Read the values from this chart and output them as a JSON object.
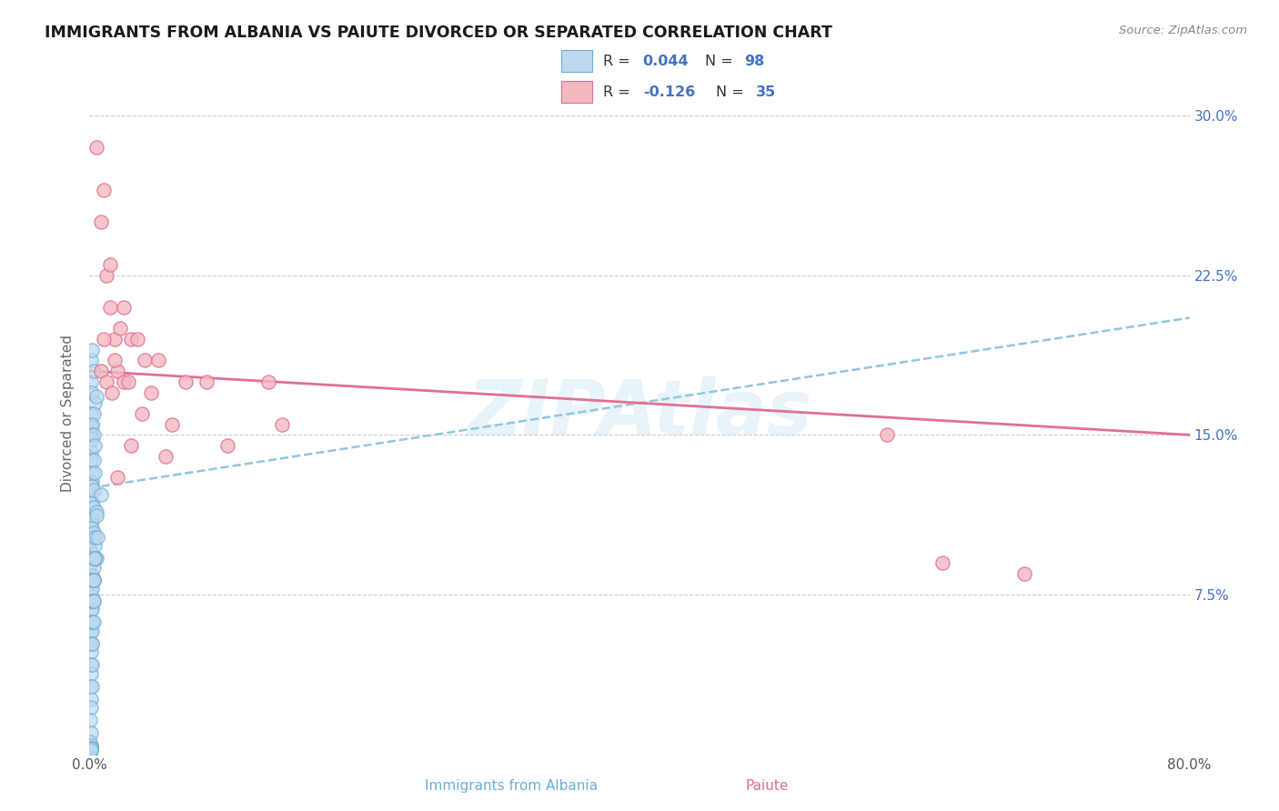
{
  "title": "IMMIGRANTS FROM ALBANIA VS PAIUTE DIVORCED OR SEPARATED CORRELATION CHART",
  "source": "Source: ZipAtlas.com",
  "ylabel_label": "Divorced or Separated",
  "xlabel_label_left": "Immigrants from Albania",
  "xlabel_label_right": "Paiute",
  "blue_color": "#6baed6",
  "blue_light": "#bdd7ee",
  "pink_color": "#f4b8c1",
  "pink_dark": "#e07090",
  "trendline_blue_color": "#93c6e0",
  "trendline_pink_color": "#e07090",
  "watermark": "ZIPAtlas",
  "xlim": [
    0.0,
    0.8
  ],
  "ylim": [
    0.0,
    0.32
  ],
  "y_tick_positions": [
    0.075,
    0.15,
    0.225,
    0.3
  ],
  "y_tick_labels": [
    "7.5%",
    "15.0%",
    "22.5%",
    "30.0%"
  ],
  "x_tick_positions": [
    0.0,
    0.1,
    0.2,
    0.3,
    0.4,
    0.5,
    0.6,
    0.7,
    0.8
  ],
  "x_tick_labels": [
    "0.0%",
    "",
    "",
    "",
    "",
    "",
    "",
    "",
    "80.0%"
  ],
  "blue_trendline_x0": 0.0,
  "blue_trendline_y0": 0.125,
  "blue_trendline_x1": 0.8,
  "blue_trendline_y1": 0.205,
  "pink_trendline_x0": 0.0,
  "pink_trendline_y0": 0.18,
  "pink_trendline_x1": 0.8,
  "pink_trendline_y1": 0.15,
  "legend_r1": "0.044",
  "legend_n1": "98",
  "legend_r2": "-0.126",
  "legend_n2": "35",
  "blue_x": [
    0.001,
    0.002,
    0.001,
    0.003,
    0.002,
    0.004,
    0.001,
    0.0005,
    0.002,
    0.001,
    0.003,
    0.002,
    0.001,
    0.005,
    0.001,
    0.002,
    0.001,
    0.003,
    0.001,
    0.002,
    0.001,
    0.001,
    0.004,
    0.002,
    0.0005,
    0.003,
    0.001,
    0.002,
    0.001,
    0.0005,
    0.002,
    0.001,
    0.003,
    0.001,
    0.002,
    0.001,
    0.004,
    0.002,
    0.001,
    0.003,
    0.001,
    0.002,
    0.001,
    0.005,
    0.001,
    0.002,
    0.001,
    0.003,
    0.001,
    0.002,
    0.001,
    0.001,
    0.004,
    0.002,
    0.001,
    0.003,
    0.001,
    0.002,
    0.001,
    0.0005,
    0.002,
    0.001,
    0.003,
    0.0005,
    0.002,
    0.001,
    0.004,
    0.002,
    0.001,
    0.003,
    0.001,
    0.002,
    0.001,
    0.005,
    0.002,
    0.003,
    0.001,
    0.002,
    0.004,
    0.003,
    0.006,
    0.002,
    0.003,
    0.001,
    0.002,
    0.008,
    0.003,
    0.004,
    0.002,
    0.001,
    0.005,
    0.003,
    0.002,
    0.001,
    0.004,
    0.002,
    0.001,
    0.003
  ],
  "blue_y": [
    0.185,
    0.19,
    0.175,
    0.18,
    0.17,
    0.165,
    0.16,
    0.155,
    0.155,
    0.15,
    0.16,
    0.155,
    0.15,
    0.168,
    0.142,
    0.148,
    0.138,
    0.15,
    0.128,
    0.132,
    0.122,
    0.118,
    0.145,
    0.128,
    0.112,
    0.138,
    0.108,
    0.118,
    0.102,
    0.096,
    0.126,
    0.09,
    0.116,
    0.084,
    0.11,
    0.078,
    0.132,
    0.106,
    0.072,
    0.124,
    0.068,
    0.094,
    0.062,
    0.114,
    0.058,
    0.084,
    0.052,
    0.104,
    0.048,
    0.074,
    0.042,
    0.038,
    0.098,
    0.068,
    0.032,
    0.088,
    0.026,
    0.058,
    0.022,
    0.016,
    0.078,
    0.01,
    0.092,
    0.006,
    0.082,
    0.004,
    0.102,
    0.072,
    0.002,
    0.082,
    0.003,
    0.062,
    0.003,
    0.092,
    0.072,
    0.082,
    0.003,
    0.062,
    0.092,
    0.072,
    0.102,
    0.052,
    0.082,
    0.003,
    0.062,
    0.122,
    0.072,
    0.092,
    0.052,
    0.003,
    0.112,
    0.082,
    0.042,
    0.003,
    0.092,
    0.032,
    0.002,
    0.062
  ],
  "pink_x": [
    0.005,
    0.008,
    0.012,
    0.015,
    0.018,
    0.022,
    0.03,
    0.04,
    0.01,
    0.025,
    0.035,
    0.05,
    0.07,
    0.02,
    0.045,
    0.015,
    0.025,
    0.06,
    0.085,
    0.1,
    0.13,
    0.01,
    0.018,
    0.028,
    0.038,
    0.055,
    0.02,
    0.03,
    0.008,
    0.012,
    0.016,
    0.14,
    0.58,
    0.62,
    0.68
  ],
  "pink_y": [
    0.285,
    0.25,
    0.225,
    0.21,
    0.195,
    0.2,
    0.195,
    0.185,
    0.265,
    0.21,
    0.195,
    0.185,
    0.175,
    0.18,
    0.17,
    0.23,
    0.175,
    0.155,
    0.175,
    0.145,
    0.175,
    0.195,
    0.185,
    0.175,
    0.16,
    0.14,
    0.13,
    0.145,
    0.18,
    0.175,
    0.17,
    0.155,
    0.15,
    0.09,
    0.085
  ]
}
